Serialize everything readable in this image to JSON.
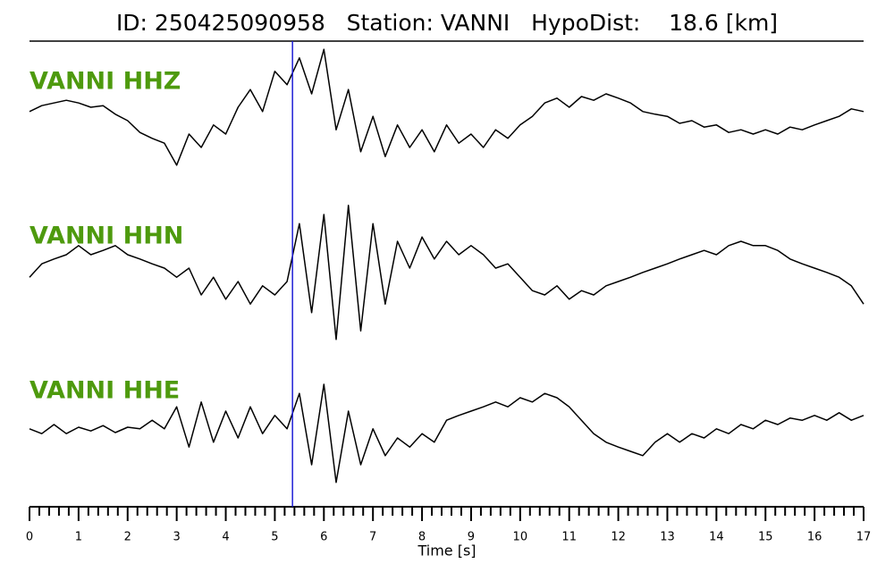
{
  "chart_data": {
    "type": "line",
    "title": "ID: 250425090958   Station: VANNI   HypoDist:    18.6 [km]",
    "xlabel": "Time [s]",
    "xlim": [
      0,
      17
    ],
    "xticks": [
      0,
      1,
      2,
      3,
      4,
      5,
      6,
      7,
      8,
      9,
      10,
      11,
      12,
      13,
      14,
      15,
      16,
      17
    ],
    "xminorticks": [
      0.2,
      0.4,
      0.6,
      0.8,
      1.2,
      1.4,
      1.6,
      1.8,
      2.2,
      2.4,
      2.6,
      2.8,
      3.2,
      3.4,
      3.6,
      3.8,
      4.2,
      4.4,
      4.6,
      4.8,
      5.2,
      5.4,
      5.6,
      5.8,
      6.2,
      6.4,
      6.6,
      6.8,
      7.2,
      7.4,
      7.6,
      7.8,
      8.2,
      8.4,
      8.6,
      8.8,
      9.2,
      9.4,
      9.6,
      9.8,
      10.2,
      10.4,
      10.6,
      10.8,
      11.2,
      11.4,
      11.6,
      11.8,
      12.2,
      12.4,
      12.6,
      12.8,
      13.2,
      13.4,
      13.6,
      13.8,
      14.2,
      14.4,
      14.6,
      14.8,
      15.2,
      15.4,
      15.6,
      15.8,
      16.2,
      16.4,
      16.6,
      16.8
    ],
    "ylim": [
      -1.5,
      1.5
    ],
    "vline": {
      "x": 5.36,
      "color": "#1f1fd6"
    },
    "name_color": "#4e9a0e",
    "x": [
      0,
      0.25,
      0.5,
      0.75,
      1,
      1.25,
      1.5,
      1.75,
      2,
      2.25,
      2.5,
      2.75,
      3,
      3.25,
      3.5,
      3.75,
      4,
      4.25,
      4.5,
      4.75,
      5,
      5.25,
      5.5,
      5.75,
      6,
      6.25,
      6.5,
      6.75,
      7,
      7.25,
      7.5,
      7.75,
      8,
      8.25,
      8.5,
      8.75,
      9,
      9.25,
      9.5,
      9.75,
      10,
      10.25,
      10.5,
      10.75,
      11,
      11.25,
      11.5,
      11.75,
      12,
      12.25,
      12.5,
      12.75,
      13,
      13.25,
      13.5,
      13.75,
      14,
      14.25,
      14.5,
      14.75,
      15,
      15.25,
      15.5,
      15.75,
      16,
      16.25,
      16.5,
      16.75,
      17
    ],
    "series": [
      {
        "name": "VANNI HHZ",
        "color": "#000000",
        "values": [
          -0.08,
          0.03,
          0.08,
          0.13,
          0.08,
          0,
          0.03,
          -0.13,
          -0.25,
          -0.47,
          -0.58,
          -0.67,
          -1.08,
          -0.5,
          -0.75,
          -0.33,
          -0.5,
          0,
          0.33,
          -0.08,
          0.67,
          0.42,
          0.92,
          0.25,
          1.08,
          -0.42,
          0.33,
          -0.83,
          -0.17,
          -0.92,
          -0.33,
          -0.75,
          -0.42,
          -0.83,
          -0.33,
          -0.67,
          -0.5,
          -0.75,
          -0.42,
          -0.58,
          -0.33,
          -0.17,
          0.08,
          0.17,
          0,
          0.2,
          0.13,
          0.25,
          0.17,
          0.08,
          -0.08,
          -0.13,
          -0.17,
          -0.3,
          -0.25,
          -0.37,
          -0.33,
          -0.47,
          -0.42,
          -0.5,
          -0.42,
          -0.5,
          -0.37,
          -0.42,
          -0.33,
          -0.25,
          -0.17,
          -0.03,
          -0.08
        ]
      },
      {
        "name": "VANNI HHN",
        "color": "#000000",
        "values": [
          -0.17,
          0.08,
          0.17,
          0.25,
          0.42,
          0.25,
          0.33,
          0.42,
          0.25,
          0.17,
          0.08,
          0,
          -0.17,
          0,
          -0.5,
          -0.17,
          -0.58,
          -0.25,
          -0.67,
          -0.33,
          -0.5,
          -0.25,
          0.83,
          -0.83,
          1,
          -1.33,
          1.17,
          -1.17,
          0.83,
          -0.67,
          0.5,
          0,
          0.58,
          0.17,
          0.5,
          0.25,
          0.42,
          0.25,
          0,
          0.08,
          -0.17,
          -0.42,
          -0.5,
          -0.33,
          -0.58,
          -0.42,
          -0.5,
          -0.33,
          -0.25,
          -0.17,
          -0.08,
          0,
          0.08,
          0.17,
          0.25,
          0.33,
          0.25,
          0.42,
          0.5,
          0.42,
          0.42,
          0.33,
          0.17,
          0.08,
          0,
          -0.08,
          -0.17,
          -0.33,
          -0.67
        ]
      },
      {
        "name": "VANNI HHE",
        "color": "#000000",
        "values": [
          -0.03,
          -0.12,
          0.05,
          -0.12,
          0,
          -0.07,
          0.03,
          -0.1,
          0,
          -0.03,
          0.13,
          -0.03,
          0.38,
          -0.37,
          0.47,
          -0.28,
          0.3,
          -0.2,
          0.38,
          -0.12,
          0.22,
          -0.03,
          0.63,
          -0.7,
          0.8,
          -1.03,
          0.3,
          -0.7,
          -0.03,
          -0.53,
          -0.2,
          -0.37,
          -0.12,
          -0.28,
          0.13,
          0.22,
          0.3,
          0.38,
          0.47,
          0.38,
          0.55,
          0.47,
          0.63,
          0.55,
          0.38,
          0.13,
          -0.12,
          -0.28,
          -0.37,
          -0.45,
          -0.53,
          -0.28,
          -0.12,
          -0.28,
          -0.12,
          -0.2,
          -0.03,
          -0.12,
          0.05,
          -0.03,
          0.13,
          0.05,
          0.17,
          0.13,
          0.22,
          0.13,
          0.27,
          0.13,
          0.22
        ]
      }
    ]
  }
}
